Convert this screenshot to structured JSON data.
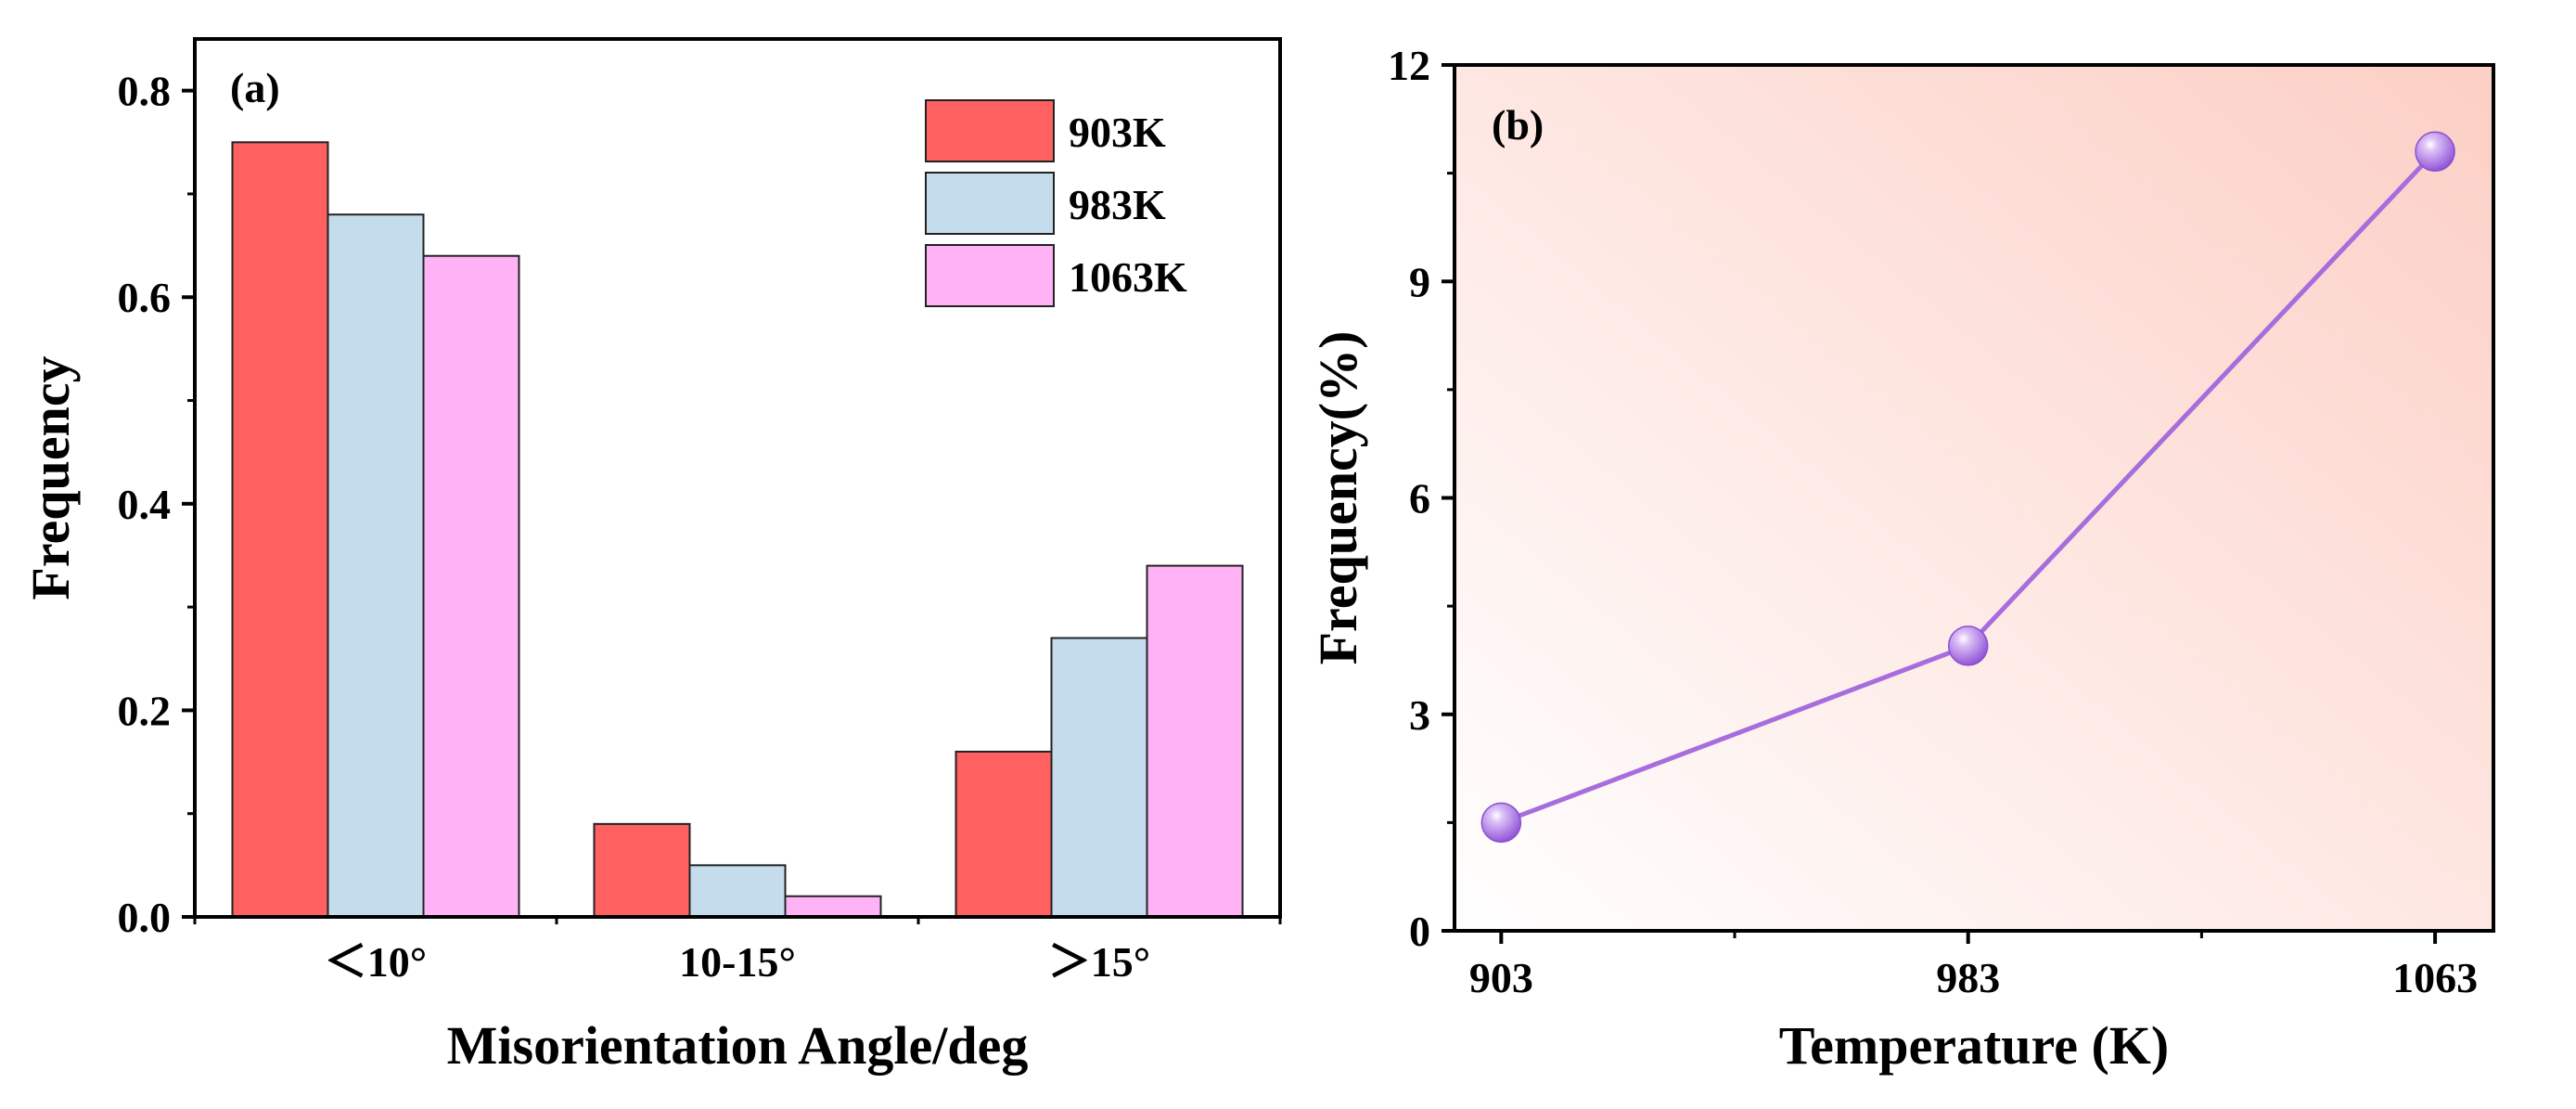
{
  "chart_data": [
    {
      "type": "bar",
      "panel_label": "(a)",
      "categories": [
        "＜10°",
        "10-15°",
        "＞15°"
      ],
      "series": [
        {
          "name": "903K",
          "values": [
            0.75,
            0.09,
            0.16
          ],
          "color": "#ff6060"
        },
        {
          "name": "983K",
          "values": [
            0.68,
            0.05,
            0.27
          ],
          "color": "#c5dced"
        },
        {
          "name": "1063K",
          "values": [
            0.64,
            0.02,
            0.34
          ],
          "color": "#ffb3f6"
        }
      ],
      "xlabel": "Misorientation Angle/deg",
      "ylabel": "Frequency",
      "ylim": [
        0,
        0.85
      ],
      "yticks": [
        0.0,
        0.2,
        0.4,
        0.6,
        0.8
      ],
      "ytick_labels": [
        "0.0",
        "0.2",
        "0.4",
        "0.6",
        "0.8"
      ],
      "legend": "top-right",
      "grid": false
    },
    {
      "type": "line",
      "panel_label": "(b)",
      "x": [
        903,
        983,
        1063
      ],
      "x_labels": [
        "903",
        "983",
        "1063"
      ],
      "y": [
        1.5,
        3.95,
        10.8
      ],
      "xlabel": "Temperature (K)",
      "ylabel": "Frequency(%)",
      "xlim": [
        895,
        1073
      ],
      "ylim": [
        0,
        12
      ],
      "yticks": [
        0,
        3,
        6,
        9,
        12
      ],
      "ytick_labels": [
        "0",
        "3",
        "6",
        "9",
        "12"
      ],
      "line_color": "#a76ddd",
      "marker_color": "#b37be8",
      "background_gradient": [
        "#ffffff",
        "#fccfc5"
      ],
      "grid": false
    }
  ]
}
